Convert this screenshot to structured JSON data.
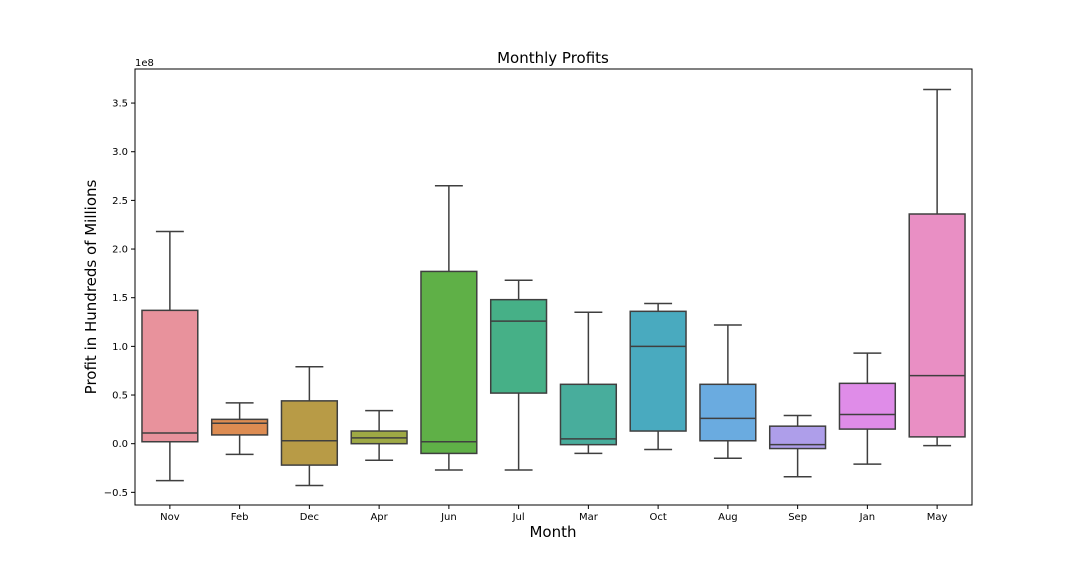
{
  "chart_data": {
    "type": "box",
    "title": "Monthly Profits",
    "xlabel": "Month",
    "ylabel": "Profit in Hundreds of Millions",
    "y_offset_label": "1e8",
    "ylim": [
      -0.63,
      3.85
    ],
    "yticks": [
      -0.5,
      0.0,
      0.5,
      1.0,
      1.5,
      2.0,
      2.5,
      3.0,
      3.5
    ],
    "ytick_labels": [
      "−0.5",
      "0.0",
      "0.5",
      "1.0",
      "1.5",
      "2.0",
      "2.5",
      "3.0",
      "3.5"
    ],
    "grid": false,
    "categories": [
      "Nov",
      "Feb",
      "Dec",
      "Apr",
      "Jun",
      "Jul",
      "Mar",
      "Oct",
      "Aug",
      "Sep",
      "Jan",
      "May"
    ],
    "boxes": [
      {
        "category": "Nov",
        "min": -0.38,
        "q1": 0.02,
        "median": 0.11,
        "q3": 1.37,
        "max": 2.18,
        "color": "#e8929c"
      },
      {
        "category": "Feb",
        "min": -0.11,
        "q1": 0.09,
        "median": 0.21,
        "q3": 0.25,
        "max": 0.42,
        "color": "#dd8c52"
      },
      {
        "category": "Dec",
        "min": -0.43,
        "q1": -0.22,
        "median": 0.03,
        "q3": 0.44,
        "max": 0.79,
        "color": "#b89b46"
      },
      {
        "category": "Apr",
        "min": -0.17,
        "q1": 0.0,
        "median": 0.06,
        "q3": 0.13,
        "max": 0.34,
        "color": "#9ea945"
      },
      {
        "category": "Jun",
        "min": -0.27,
        "q1": -0.1,
        "median": 0.02,
        "q3": 1.77,
        "max": 2.65,
        "color": "#5fb047"
      },
      {
        "category": "Jul",
        "min": -0.27,
        "q1": 0.52,
        "median": 1.26,
        "q3": 1.48,
        "max": 1.68,
        "color": "#46b087"
      },
      {
        "category": "Mar",
        "min": -0.1,
        "q1": -0.01,
        "median": 0.05,
        "q3": 0.61,
        "max": 1.35,
        "color": "#48ad9c"
      },
      {
        "category": "Oct",
        "min": -0.06,
        "q1": 0.13,
        "median": 1.0,
        "q3": 1.36,
        "max": 1.44,
        "color": "#49aabf"
      },
      {
        "category": "Aug",
        "min": -0.15,
        "q1": 0.03,
        "median": 0.26,
        "q3": 0.61,
        "max": 1.22,
        "color": "#6aabe0"
      },
      {
        "category": "Sep",
        "min": -0.34,
        "q1": -0.05,
        "median": -0.01,
        "q3": 0.18,
        "max": 0.29,
        "color": "#ae9eea"
      },
      {
        "category": "Jan",
        "min": -0.21,
        "q1": 0.15,
        "median": 0.3,
        "q3": 0.62,
        "max": 0.93,
        "color": "#df8ce8"
      },
      {
        "category": "May",
        "min": -0.02,
        "q1": 0.07,
        "median": 0.7,
        "q3": 2.36,
        "max": 3.64,
        "color": "#e98fc4"
      }
    ]
  }
}
